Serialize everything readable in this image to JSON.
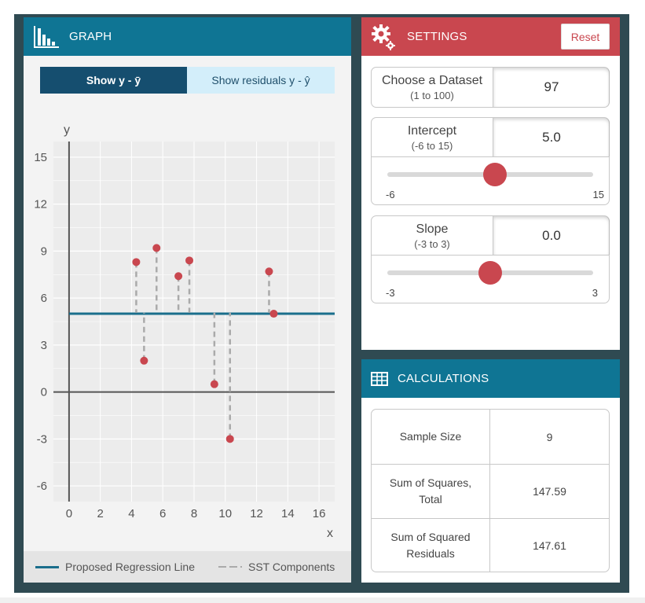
{
  "graph": {
    "title": "GRAPH",
    "toggle_y_label": "Show y - ȳ",
    "toggle_residuals_label": "Show residuals y - ŷ"
  },
  "chart_data": {
    "type": "scatter",
    "xlabel": "x",
    "ylabel": "y",
    "xlim": [
      -1,
      17
    ],
    "ylim": [
      -7,
      16
    ],
    "x_ticks": [
      0,
      2,
      4,
      6,
      8,
      10,
      12,
      14,
      16
    ],
    "y_ticks": [
      -6,
      -3,
      0,
      3,
      6,
      9,
      12,
      15
    ],
    "regression_line": {
      "intercept": 5.0,
      "slope": 0.0
    },
    "points": [
      {
        "x": 4.3,
        "y": 8.3
      },
      {
        "x": 4.8,
        "y": 2.0
      },
      {
        "x": 5.6,
        "y": 9.2
      },
      {
        "x": 7.0,
        "y": 7.4
      },
      {
        "x": 7.7,
        "y": 8.4
      },
      {
        "x": 9.3,
        "y": 0.5
      },
      {
        "x": 10.3,
        "y": -3.0
      },
      {
        "x": 12.8,
        "y": 7.7
      },
      {
        "x": 13.1,
        "y": 5.0
      }
    ],
    "colors": {
      "line": "#1a6e8c",
      "points": "#c9474f",
      "stems": "#aaaaaa",
      "grid": "#ffffff",
      "plot_bg": "#ececec"
    }
  },
  "legend": {
    "regression_label": "Proposed Regression Line",
    "sst_label": "SST Components"
  },
  "settings": {
    "title": "SETTINGS",
    "reset_label": "Reset",
    "dataset": {
      "label": "Choose a Dataset",
      "range": "(1 to 100)",
      "value": "97"
    },
    "intercept": {
      "label": "Intercept",
      "range": "(-6 to 15)",
      "value": "5.0",
      "min_label": "-6",
      "max_label": "15",
      "min": -6,
      "max": 15,
      "current": 5.0
    },
    "slope": {
      "label": "Slope",
      "range": "(-3 to 3)",
      "value": "0.0",
      "min_label": "-3",
      "max_label": "3",
      "min": -3,
      "max": 3,
      "current": 0.0
    }
  },
  "calculations": {
    "title": "CALCULATIONS",
    "rows": [
      {
        "label": "Sample Size",
        "value": "9"
      },
      {
        "label": "Sum of Squares, Total",
        "value": "147.59"
      },
      {
        "label": "Sum of Squared Residuals",
        "value": "147.61"
      }
    ]
  },
  "colors": {
    "teal": "#0f7594",
    "red": "#c9474f",
    "navy": "#154e6f",
    "frame": "#2f4a52"
  }
}
